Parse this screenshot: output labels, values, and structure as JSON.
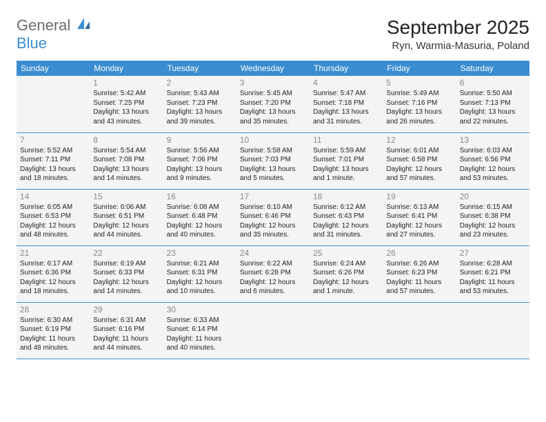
{
  "logo": {
    "general": "General",
    "blue": "Blue"
  },
  "title": "September 2025",
  "location": "Ryn, Warmia-Masuria, Poland",
  "colors": {
    "accent": "#3a8dd0",
    "cell_bg": "#f3f4f5",
    "text": "#222",
    "daynum": "#888",
    "logo_gray": "#6b6b6b"
  },
  "weekdays": [
    "Sunday",
    "Monday",
    "Tuesday",
    "Wednesday",
    "Thursday",
    "Friday",
    "Saturday"
  ],
  "weeks": [
    [
      null,
      {
        "n": "1",
        "sr": "5:42 AM",
        "ss": "7:25 PM",
        "dl": "13 hours and 43 minutes."
      },
      {
        "n": "2",
        "sr": "5:43 AM",
        "ss": "7:23 PM",
        "dl": "13 hours and 39 minutes."
      },
      {
        "n": "3",
        "sr": "5:45 AM",
        "ss": "7:20 PM",
        "dl": "13 hours and 35 minutes."
      },
      {
        "n": "4",
        "sr": "5:47 AM",
        "ss": "7:18 PM",
        "dl": "13 hours and 31 minutes."
      },
      {
        "n": "5",
        "sr": "5:49 AM",
        "ss": "7:16 PM",
        "dl": "13 hours and 26 minutes."
      },
      {
        "n": "6",
        "sr": "5:50 AM",
        "ss": "7:13 PM",
        "dl": "13 hours and 22 minutes."
      }
    ],
    [
      {
        "n": "7",
        "sr": "5:52 AM",
        "ss": "7:11 PM",
        "dl": "13 hours and 18 minutes."
      },
      {
        "n": "8",
        "sr": "5:54 AM",
        "ss": "7:08 PM",
        "dl": "13 hours and 14 minutes."
      },
      {
        "n": "9",
        "sr": "5:56 AM",
        "ss": "7:06 PM",
        "dl": "13 hours and 9 minutes."
      },
      {
        "n": "10",
        "sr": "5:58 AM",
        "ss": "7:03 PM",
        "dl": "13 hours and 5 minutes."
      },
      {
        "n": "11",
        "sr": "5:59 AM",
        "ss": "7:01 PM",
        "dl": "13 hours and 1 minute."
      },
      {
        "n": "12",
        "sr": "6:01 AM",
        "ss": "6:58 PM",
        "dl": "12 hours and 57 minutes."
      },
      {
        "n": "13",
        "sr": "6:03 AM",
        "ss": "6:56 PM",
        "dl": "12 hours and 53 minutes."
      }
    ],
    [
      {
        "n": "14",
        "sr": "6:05 AM",
        "ss": "6:53 PM",
        "dl": "12 hours and 48 minutes."
      },
      {
        "n": "15",
        "sr": "6:06 AM",
        "ss": "6:51 PM",
        "dl": "12 hours and 44 minutes."
      },
      {
        "n": "16",
        "sr": "6:08 AM",
        "ss": "6:48 PM",
        "dl": "12 hours and 40 minutes."
      },
      {
        "n": "17",
        "sr": "6:10 AM",
        "ss": "6:46 PM",
        "dl": "12 hours and 35 minutes."
      },
      {
        "n": "18",
        "sr": "6:12 AM",
        "ss": "6:43 PM",
        "dl": "12 hours and 31 minutes."
      },
      {
        "n": "19",
        "sr": "6:13 AM",
        "ss": "6:41 PM",
        "dl": "12 hours and 27 minutes."
      },
      {
        "n": "20",
        "sr": "6:15 AM",
        "ss": "6:38 PM",
        "dl": "12 hours and 23 minutes."
      }
    ],
    [
      {
        "n": "21",
        "sr": "6:17 AM",
        "ss": "6:36 PM",
        "dl": "12 hours and 18 minutes."
      },
      {
        "n": "22",
        "sr": "6:19 AM",
        "ss": "6:33 PM",
        "dl": "12 hours and 14 minutes."
      },
      {
        "n": "23",
        "sr": "6:21 AM",
        "ss": "6:31 PM",
        "dl": "12 hours and 10 minutes."
      },
      {
        "n": "24",
        "sr": "6:22 AM",
        "ss": "6:28 PM",
        "dl": "12 hours and 6 minutes."
      },
      {
        "n": "25",
        "sr": "6:24 AM",
        "ss": "6:26 PM",
        "dl": "12 hours and 1 minute."
      },
      {
        "n": "26",
        "sr": "6:26 AM",
        "ss": "6:23 PM",
        "dl": "11 hours and 57 minutes."
      },
      {
        "n": "27",
        "sr": "6:28 AM",
        "ss": "6:21 PM",
        "dl": "11 hours and 53 minutes."
      }
    ],
    [
      {
        "n": "28",
        "sr": "6:30 AM",
        "ss": "6:19 PM",
        "dl": "11 hours and 48 minutes."
      },
      {
        "n": "29",
        "sr": "6:31 AM",
        "ss": "6:16 PM",
        "dl": "11 hours and 44 minutes."
      },
      {
        "n": "30",
        "sr": "6:33 AM",
        "ss": "6:14 PM",
        "dl": "11 hours and 40 minutes."
      },
      null,
      null,
      null,
      null
    ]
  ],
  "labels": {
    "sunrise": "Sunrise:",
    "sunset": "Sunset:",
    "daylight": "Daylight:"
  }
}
